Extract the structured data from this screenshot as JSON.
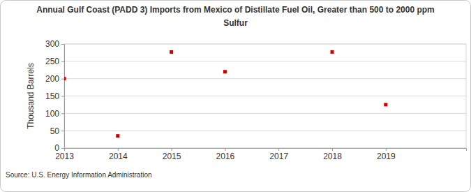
{
  "chart_data": {
    "type": "scatter",
    "title": "Annual Gulf Coast (PADD 3) Imports from Mexico of Distillate Fuel Oil, Greater than 500 to 2000 ppm Sulfur",
    "y_label": "Thousand Barrels",
    "source": "Source: U.S. Energy Information Administration",
    "x": [
      2013,
      2014,
      2015,
      2016,
      2018,
      2019
    ],
    "values": [
      200,
      35,
      277,
      220,
      277,
      125
    ],
    "color": "#cc0000",
    "marker": "square",
    "xlim": [
      2013,
      2020.5
    ],
    "xticks": [
      2013,
      2014,
      2015,
      2016,
      2017,
      2018,
      2019
    ],
    "ylim": [
      0,
      300
    ],
    "yticks": [
      0,
      50,
      100,
      150,
      200,
      250,
      300
    ],
    "grid": true
  }
}
